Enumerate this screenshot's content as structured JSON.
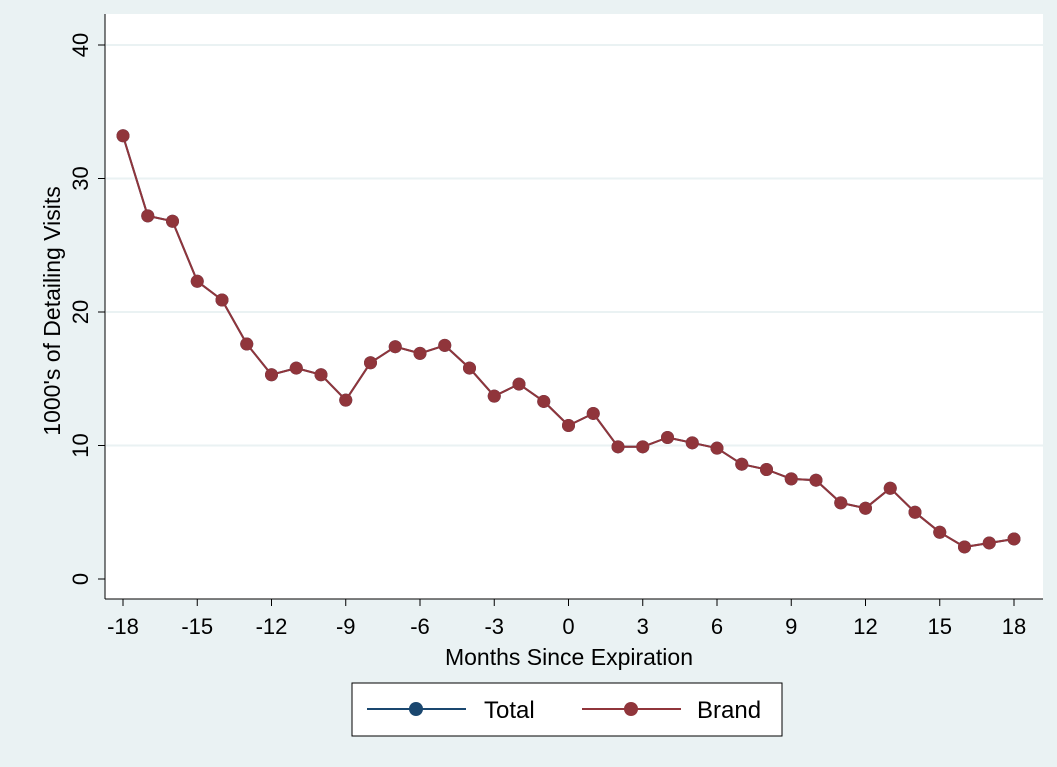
{
  "chart_data": {
    "type": "line",
    "xlabel": "Months Since Expiration",
    "ylabel": "1000's of Detailing Visits",
    "xlim": [
      -18,
      18
    ],
    "ylim": [
      0,
      40
    ],
    "xticks": [
      "-18",
      "-15",
      "-12",
      "-9",
      "-6",
      "-3",
      "0",
      "3",
      "6",
      "9",
      "12",
      "15",
      "18"
    ],
    "yticks": [
      "0",
      "10",
      "20",
      "30",
      "40"
    ],
    "grid": "horizontal",
    "legend_position": "bottom",
    "x": [
      -18,
      -17,
      -16,
      -15,
      -14,
      -13,
      -12,
      -11,
      -10,
      -9,
      -8,
      -7,
      -6,
      -5,
      -4,
      -3,
      -2,
      -1,
      0,
      1,
      2,
      3,
      4,
      5,
      6,
      7,
      8,
      9,
      10,
      11,
      12,
      13,
      14,
      15,
      16,
      17,
      18
    ],
    "series": [
      {
        "name": "Total",
        "color": "#1a476f",
        "values": [
          33.2,
          27.2,
          26.8,
          22.3,
          20.9,
          17.6,
          15.3,
          15.8,
          15.3,
          13.4,
          16.2,
          17.4,
          16.9,
          17.5,
          15.8,
          13.7,
          14.6,
          13.3,
          11.5,
          12.4,
          9.9,
          9.9,
          10.6,
          10.2,
          9.8,
          8.6,
          8.2,
          7.5,
          7.4,
          5.7,
          5.3,
          6.8,
          5.0,
          3.5,
          2.4,
          2.7,
          3.0
        ]
      },
      {
        "name": "Brand",
        "color": "#90353b",
        "values": [
          33.2,
          27.2,
          26.8,
          22.3,
          20.9,
          17.6,
          15.3,
          15.8,
          15.3,
          13.4,
          16.2,
          17.4,
          16.9,
          17.5,
          15.8,
          13.7,
          14.6,
          13.3,
          11.5,
          12.4,
          9.9,
          9.9,
          10.6,
          10.2,
          9.8,
          8.6,
          8.2,
          7.5,
          7.4,
          5.7,
          5.3,
          6.8,
          5.0,
          3.5,
          2.4,
          2.7,
          3.0
        ]
      }
    ]
  },
  "colors": {
    "background": "#eaf2f3",
    "plot_background": "#ffffff",
    "grid": "#eaf2f3"
  }
}
